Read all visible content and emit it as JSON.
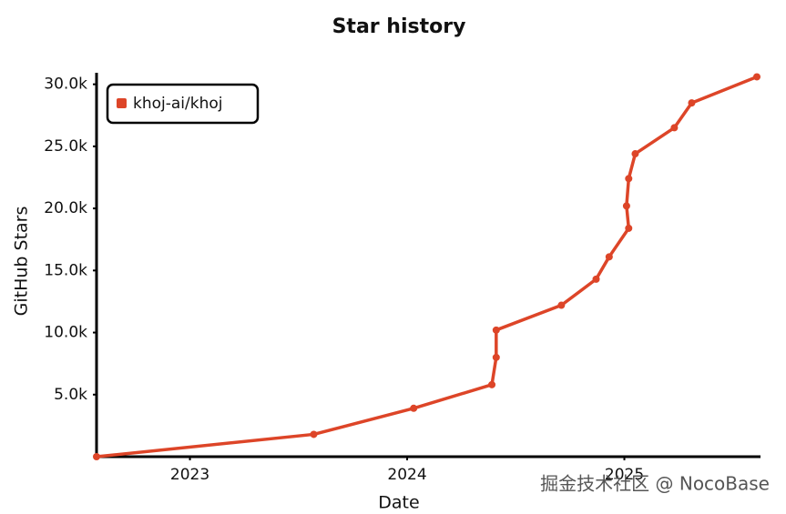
{
  "chart_data": {
    "type": "line",
    "title": "Star history",
    "x_label": "Date",
    "y_label": "GitHub Stars",
    "x": [
      2022.57,
      2023.57,
      2024.03,
      2024.39,
      2024.41,
      2024.41,
      2024.71,
      2024.87,
      2024.93,
      2025.02,
      2025.01,
      2025.02,
      2025.05,
      2025.23,
      2025.31,
      2025.61
    ],
    "series": [
      {
        "name": "khoj-ai/khoj",
        "color": "#dd4528",
        "values": [
          0,
          1800,
          3900,
          5800,
          8000,
          10200,
          12200,
          14300,
          16100,
          18400,
          20200,
          22400,
          24400,
          26500,
          28500,
          30600
        ]
      }
    ],
    "xlim": [
      2022.57,
      2025.61
    ],
    "xticks": [
      2023,
      2024,
      2025
    ],
    "ylim": [
      0,
      31000
    ],
    "yticks": [
      {
        "value": 5000,
        "label": "5.0k"
      },
      {
        "value": 10000,
        "label": "10.0k"
      },
      {
        "value": 15000,
        "label": "15.0k"
      },
      {
        "value": 20000,
        "label": "20.0k"
      },
      {
        "value": 25000,
        "label": "25.0k"
      },
      {
        "value": 30000,
        "label": "30.0k"
      }
    ],
    "legend": "top-left",
    "watermark": "掘金技术社区 @ NocoBase"
  }
}
